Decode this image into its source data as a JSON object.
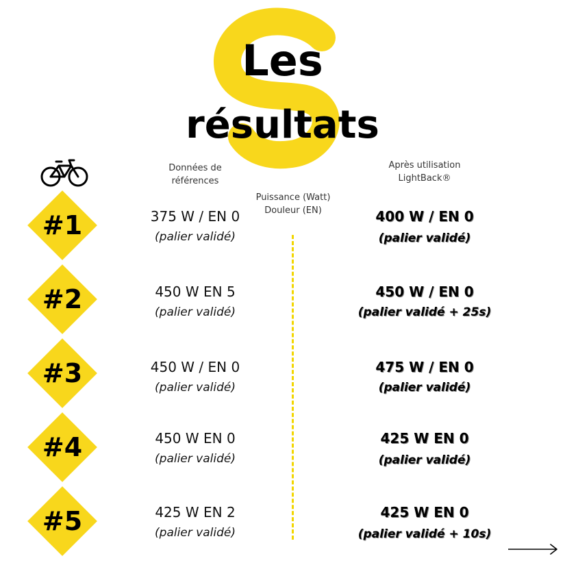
{
  "title": {
    "line1": "Les",
    "line2": "résultats"
  },
  "headers": {
    "reference": "Données de\nréférences",
    "middle": "Puissance (Watt)\nDouleur (EN)",
    "after": "Après utilisation\nLightBack®"
  },
  "rows": [
    {
      "rank": "#1",
      "ref_value": "375 W / EN 0",
      "ref_note": "(palier validé)",
      "after_value": "400 W / EN 0",
      "after_note": "(palier validé)"
    },
    {
      "rank": "#2",
      "ref_value": "450 W EN 5",
      "ref_note": "(palier validé)",
      "after_value": "450 W / EN 0",
      "after_note": "(palier validé + 25s)"
    },
    {
      "rank": "#3",
      "ref_value": "450 W / EN 0",
      "ref_note": "(palier validé)",
      "after_value": "475 W / EN 0",
      "after_note": "(palier validé)"
    },
    {
      "rank": "#4",
      "ref_value": "450 W EN 0",
      "ref_note": "(palier validé)",
      "after_value": "425 W EN 0",
      "after_note": "(palier validé)"
    },
    {
      "rank": "#5",
      "ref_value": "425 W EN 2",
      "ref_note": "(palier validé)",
      "after_value": "425 W EN 0",
      "after_note": "(palier validé + 10s)"
    }
  ],
  "icons": {
    "bike": "bicycle-icon",
    "logo": "lightback-s-logo",
    "next": "arrow-right-icon"
  },
  "colors": {
    "accent": "#f8d71c",
    "text": "#111111"
  }
}
